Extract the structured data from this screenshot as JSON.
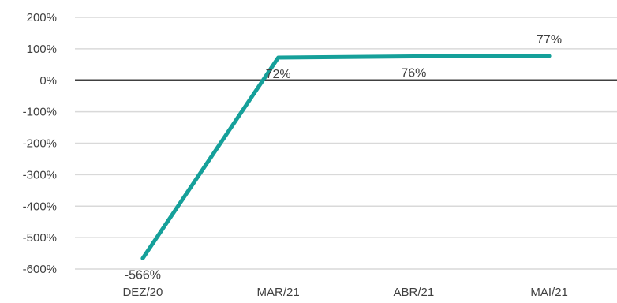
{
  "chart_data": {
    "type": "line",
    "title": "",
    "xlabel": "",
    "ylabel": "",
    "categories": [
      "DEZ/20",
      "MAR/21",
      "ABR/21",
      "MAI/21"
    ],
    "series": [
      {
        "values": [
          -566,
          72,
          76,
          77
        ],
        "data_labels": [
          "-566%",
          "72%",
          "76%",
          "77%"
        ],
        "color": "#15a09a"
      }
    ],
    "ylim": [
      -600,
      200
    ],
    "y_ticks": [
      200,
      100,
      0,
      -100,
      -200,
      -300,
      -400,
      -500,
      -600
    ],
    "y_tick_labels": [
      "200%",
      "100%",
      "0%",
      "-100%",
      "-200%",
      "-300%",
      "-400%",
      "-500%",
      "-600%"
    ],
    "grid": true,
    "legend": "none",
    "colors": {
      "gridline": "#d9d9d9",
      "zero_line": "#404040",
      "text": "#404040"
    }
  }
}
